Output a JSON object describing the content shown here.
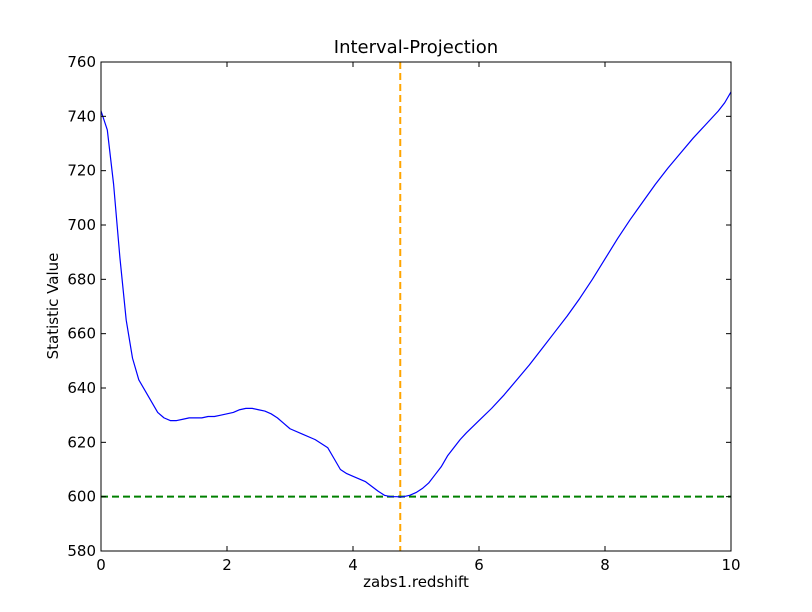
{
  "chart_data": {
    "type": "line",
    "title": "Interval-Projection",
    "xlabel": "zabs1.redshift",
    "ylabel": "Statistic Value",
    "xlim": [
      0,
      10
    ],
    "ylim": [
      580,
      760
    ],
    "x_ticks": [
      0,
      2,
      4,
      6,
      8,
      10
    ],
    "y_ticks": [
      580,
      600,
      620,
      640,
      660,
      680,
      700,
      720,
      740,
      760
    ],
    "grid": false,
    "series": [
      {
        "color": "#0000ff",
        "x": [
          0.0,
          0.1,
          0.2,
          0.3,
          0.4,
          0.5,
          0.6,
          0.7,
          0.8,
          0.9,
          1.0,
          1.1,
          1.2,
          1.3,
          1.4,
          1.5,
          1.6,
          1.7,
          1.8,
          1.9,
          2.0,
          2.1,
          2.2,
          2.3,
          2.4,
          2.5,
          2.6,
          2.7,
          2.8,
          2.9,
          3.0,
          3.2,
          3.4,
          3.6,
          3.7,
          3.8,
          3.9,
          4.0,
          4.2,
          4.4,
          4.5,
          4.6,
          4.7,
          4.75,
          4.8,
          4.9,
          5.0,
          5.1,
          5.2,
          5.3,
          5.4,
          5.5,
          5.6,
          5.7,
          5.8,
          6.0,
          6.2,
          6.4,
          6.6,
          6.8,
          7.0,
          7.2,
          7.4,
          7.6,
          7.8,
          8.0,
          8.2,
          8.4,
          8.6,
          8.8,
          9.0,
          9.2,
          9.4,
          9.6,
          9.8,
          9.9,
          10.0
        ],
        "y": [
          742,
          735,
          715,
          688,
          665,
          651,
          643,
          639,
          635,
          631,
          629,
          628,
          628,
          628.5,
          629,
          629,
          629,
          629.5,
          629.5,
          630,
          630.5,
          631,
          632,
          632.5,
          632.5,
          632,
          631.5,
          630.5,
          629,
          627,
          625,
          623,
          621,
          618,
          614,
          610,
          608.5,
          607.5,
          605.5,
          602,
          600.5,
          600,
          600,
          599.8,
          600,
          600.5,
          601.5,
          603,
          605,
          608,
          611,
          615,
          618,
          621,
          623.5,
          628,
          632.5,
          637.5,
          643,
          648.5,
          654.5,
          660.5,
          666.5,
          673,
          680,
          687.5,
          695,
          702,
          708.5,
          715,
          721,
          726.5,
          732,
          737,
          742,
          745,
          749
        ]
      }
    ],
    "reference_lines": [
      {
        "orientation": "vertical",
        "value": 4.75,
        "color": "#ffa500",
        "style": "dashed"
      },
      {
        "orientation": "horizontal",
        "value": 600,
        "color": "#008000",
        "style": "dashed"
      }
    ]
  }
}
